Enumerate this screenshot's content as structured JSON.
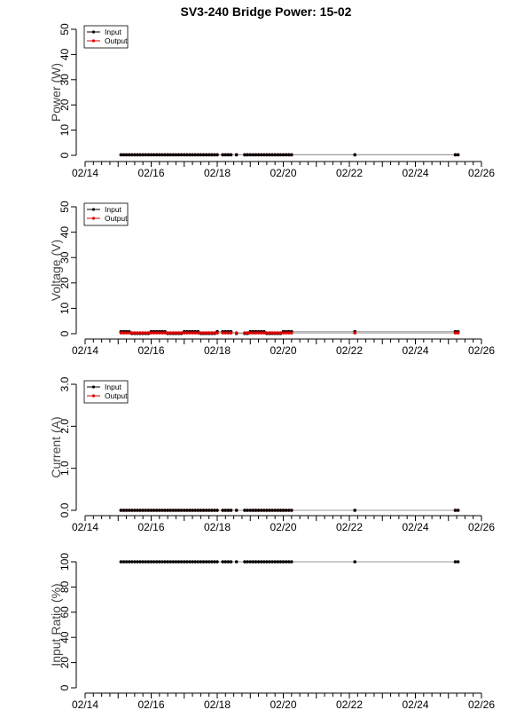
{
  "title": "SV3-240 Bridge Power: 15-02",
  "colors": {
    "input": "#000000",
    "output": "#dd0000",
    "line": "#999999"
  },
  "x_ticks": [
    "02/14",
    "02/16",
    "02/18",
    "02/20",
    "02/22",
    "02/24",
    "02/26"
  ],
  "x_points": [
    "02/15 02:00",
    "02/15 04:00",
    "02/15 06:00",
    "02/15 08:00",
    "02/15 10:00",
    "02/15 12:00",
    "02/15 14:00",
    "02/15 16:00",
    "02/15 18:00",
    "02/15 20:00",
    "02/15 22:00",
    "02/16 00:00",
    "02/16 02:00",
    "02/16 04:00",
    "02/16 06:00",
    "02/16 08:00",
    "02/16 10:00",
    "02/16 12:00",
    "02/16 14:00",
    "02/16 16:00",
    "02/16 18:00",
    "02/16 20:00",
    "02/16 22:00",
    "02/17 00:00",
    "02/17 02:00",
    "02/17 04:00",
    "02/17 06:00",
    "02/17 08:00",
    "02/17 10:00",
    "02/17 12:00",
    "02/17 14:00",
    "02/17 16:00",
    "02/17 18:00",
    "02/17 20:00",
    "02/17 22:00",
    "02/18 00:00",
    "02/18 04:00",
    "02/18 06:00",
    "02/18 08:00",
    "02/18 10:00",
    "02/18 14:00",
    "02/18 20:00",
    "02/18 22:00",
    "02/19 00:00",
    "02/19 02:00",
    "02/19 04:00",
    "02/19 06:00",
    "02/19 08:00",
    "02/19 10:00",
    "02/19 12:00",
    "02/19 14:00",
    "02/19 16:00",
    "02/19 18:00",
    "02/19 20:00",
    "02/19 22:00",
    "02/20 00:00",
    "02/20 02:00",
    "02/20 04:00",
    "02/20 06:00",
    "02/22 04:00",
    "02/25 05:00",
    "02/25 07:00"
  ],
  "chart_data": [
    {
      "type": "line",
      "ylabel": "Power (W)",
      "ylim": [
        0,
        50
      ],
      "yticks": [
        "0",
        "10",
        "20",
        "30",
        "40",
        "50"
      ],
      "legend": {
        "position": "top-left",
        "entries": [
          "Input",
          "Output"
        ]
      },
      "xlim": [
        "02/14",
        "02/26"
      ],
      "series": [
        {
          "name": "Input",
          "color": "#000000",
          "values": [
            0.2,
            0.2,
            0.2,
            0.2,
            0.2,
            0.2,
            0.2,
            0.2,
            0.2,
            0.2,
            0.2,
            0.2,
            0.2,
            0.2,
            0.2,
            0.2,
            0.2,
            0.2,
            0.2,
            0.2,
            0.2,
            0.2,
            0.2,
            0.2,
            0.2,
            0.2,
            0.2,
            0.2,
            0.2,
            0.2,
            0.2,
            0.2,
            0.2,
            0.2,
            0.2,
            0.2,
            0.2,
            0.2,
            0.2,
            0.2,
            0.2,
            0.2,
            0.2,
            0.2,
            0.2,
            0.2,
            0.2,
            0.2,
            0.2,
            0.2,
            0.2,
            0.2,
            0.2,
            0.2,
            0.2,
            0.2,
            0.2,
            0.2,
            0.2,
            0.2,
            0.2,
            0.2
          ]
        },
        {
          "name": "Output",
          "color": "#dd0000",
          "values": [
            0.2,
            0.2,
            0.2,
            0.2,
            0.2,
            0.2,
            0.2,
            0.2,
            0.2,
            0.2,
            0.2,
            0.2,
            0.2,
            0.2,
            0.2,
            0.2,
            0.2,
            0.2,
            0.2,
            0.2,
            0.2,
            0.2,
            0.2,
            0.2,
            0.2,
            0.2,
            0.2,
            0.2,
            0.2,
            0.2,
            0.2,
            0.2,
            0.2,
            0.2,
            0.2,
            0.2,
            0.2,
            0.2,
            0.2,
            0.2,
            0.2,
            0.2,
            0.2,
            0.2,
            0.2,
            0.2,
            0.2,
            0.2,
            0.2,
            0.2,
            0.2,
            0.2,
            0.2,
            0.2,
            0.2,
            0.2,
            0.2,
            0.2,
            0.2,
            0.2,
            0.2,
            0.2
          ]
        }
      ]
    },
    {
      "type": "line",
      "ylabel": "Voltage (V)",
      "ylim": [
        0,
        50
      ],
      "yticks": [
        "0",
        "10",
        "20",
        "30",
        "40",
        "50"
      ],
      "legend": {
        "position": "top-left",
        "entries": [
          "Input",
          "Output"
        ]
      },
      "xlim": [
        "02/14",
        "02/26"
      ],
      "series": [
        {
          "name": "Input",
          "color": "#000000",
          "values": [
            0.8,
            0.8,
            0.8,
            0.8,
            0.1,
            0.1,
            0.1,
            0.1,
            0.1,
            0.1,
            0.1,
            0.8,
            0.8,
            0.8,
            0.8,
            0.8,
            0.8,
            0.1,
            0.1,
            0.1,
            0.1,
            0.1,
            0.1,
            0.8,
            0.8,
            0.8,
            0.8,
            0.8,
            0.8,
            0.1,
            0.1,
            0.1,
            0.1,
            0.1,
            0.1,
            0.8,
            0.8,
            0.8,
            0.8,
            0.8,
            0.1,
            0.1,
            0.1,
            0.8,
            0.8,
            0.8,
            0.8,
            0.8,
            0.8,
            0.1,
            0.1,
            0.1,
            0.1,
            0.1,
            0.1,
            0.8,
            0.8,
            0.8,
            0.8,
            0.8,
            0.8,
            0.8
          ]
        },
        {
          "name": "Output",
          "color": "#dd0000",
          "values": [
            0.3,
            0.3,
            0.3,
            0.3,
            0.3,
            0.3,
            0.3,
            0.3,
            0.3,
            0.3,
            0.3,
            0.3,
            0.3,
            0.3,
            0.3,
            0.3,
            0.3,
            0.3,
            0.3,
            0.3,
            0.3,
            0.3,
            0.3,
            0.3,
            0.3,
            0.3,
            0.3,
            0.3,
            0.3,
            0.3,
            0.3,
            0.3,
            0.3,
            0.3,
            0.3,
            0.3,
            0.3,
            0.3,
            0.3,
            0.3,
            0.3,
            0.3,
            0.3,
            0.3,
            0.3,
            0.3,
            0.3,
            0.3,
            0.3,
            0.3,
            0.3,
            0.3,
            0.3,
            0.3,
            0.3,
            0.3,
            0.3,
            0.3,
            0.3,
            0.3,
            0.3,
            0.3
          ]
        }
      ]
    },
    {
      "type": "line",
      "ylabel": "Current (A)",
      "ylim": [
        0,
        3
      ],
      "yticks": [
        "0.0",
        "1.0",
        "2.0",
        "3.0"
      ],
      "legend": {
        "position": "top-left",
        "entries": [
          "Input",
          "Output"
        ]
      },
      "xlim": [
        "02/14",
        "02/26"
      ],
      "series": [
        {
          "name": "Input",
          "color": "#000000",
          "values": [
            0.0,
            0.0,
            0.0,
            0.0,
            0.0,
            0.0,
            0.0,
            0.0,
            0.0,
            0.0,
            0.0,
            0.0,
            0.0,
            0.0,
            0.0,
            0.0,
            0.0,
            0.0,
            0.0,
            0.0,
            0.0,
            0.0,
            0.0,
            0.0,
            0.0,
            0.0,
            0.0,
            0.0,
            0.0,
            0.0,
            0.0,
            0.0,
            0.0,
            0.0,
            0.0,
            0.0,
            0.0,
            0.0,
            0.0,
            0.0,
            0.0,
            0.0,
            0.0,
            0.0,
            0.0,
            0.0,
            0.0,
            0.0,
            0.0,
            0.0,
            0.0,
            0.0,
            0.0,
            0.0,
            0.0,
            0.0,
            0.0,
            0.0,
            0.0,
            0.0,
            0.0,
            0.0
          ]
        },
        {
          "name": "Output",
          "color": "#dd0000",
          "values": [
            0.0,
            0.0,
            0.0,
            0.0,
            0.0,
            0.0,
            0.0,
            0.0,
            0.0,
            0.0,
            0.0,
            0.0,
            0.0,
            0.0,
            0.0,
            0.0,
            0.0,
            0.0,
            0.0,
            0.0,
            0.0,
            0.0,
            0.0,
            0.0,
            0.0,
            0.0,
            0.0,
            0.0,
            0.0,
            0.0,
            0.0,
            0.0,
            0.0,
            0.0,
            0.0,
            0.0,
            0.0,
            0.0,
            0.0,
            0.0,
            0.0,
            0.0,
            0.0,
            0.0,
            0.0,
            0.0,
            0.0,
            0.0,
            0.0,
            0.0,
            0.0,
            0.0,
            0.0,
            0.0,
            0.0,
            0.0,
            0.0,
            0.0,
            0.0,
            0.0,
            0.0,
            0.0
          ]
        }
      ]
    },
    {
      "type": "line",
      "ylabel": "Input Ratio (%)",
      "ylim": [
        0,
        100
      ],
      "yticks": [
        "0",
        "20",
        "40",
        "60",
        "80",
        "100"
      ],
      "xlim": [
        "02/14",
        "02/26"
      ],
      "series": [
        {
          "name": "",
          "color": "#000000",
          "values": [
            100,
            100,
            100,
            100,
            100,
            100,
            100,
            100,
            100,
            100,
            100,
            100,
            100,
            100,
            100,
            100,
            100,
            100,
            100,
            100,
            100,
            100,
            100,
            100,
            100,
            100,
            100,
            100,
            100,
            100,
            100,
            100,
            100,
            100,
            100,
            100,
            100,
            100,
            100,
            100,
            100,
            100,
            100,
            100,
            100,
            100,
            100,
            100,
            100,
            100,
            100,
            100,
            100,
            100,
            100,
            100,
            100,
            100,
            100,
            100,
            100,
            100
          ]
        }
      ]
    }
  ]
}
